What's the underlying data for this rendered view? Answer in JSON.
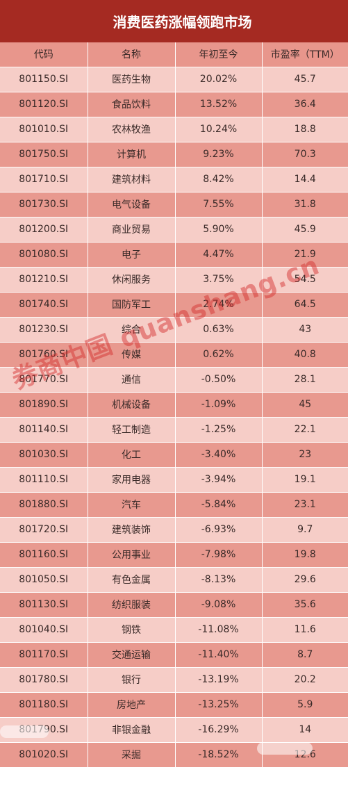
{
  "title": "消费医药涨幅领跑市场",
  "columns": [
    "代码",
    "名称",
    "年初至今",
    "市盈率（TTM）"
  ],
  "rows": [
    {
      "code": "801150.SI",
      "name": "医药生物",
      "ytd": "20.02%",
      "pe": "45.7"
    },
    {
      "code": "801120.SI",
      "name": "食品饮料",
      "ytd": "13.52%",
      "pe": "36.4"
    },
    {
      "code": "801010.SI",
      "name": "农林牧渔",
      "ytd": "10.24%",
      "pe": "18.8"
    },
    {
      "code": "801750.SI",
      "name": "计算机",
      "ytd": "9.23%",
      "pe": "70.3"
    },
    {
      "code": "801710.SI",
      "name": "建筑材料",
      "ytd": "8.42%",
      "pe": "14.4"
    },
    {
      "code": "801730.SI",
      "name": "电气设备",
      "ytd": "7.55%",
      "pe": "31.8"
    },
    {
      "code": "801200.SI",
      "name": "商业贸易",
      "ytd": "5.90%",
      "pe": "45.9"
    },
    {
      "code": "801080.SI",
      "name": "电子",
      "ytd": "4.47%",
      "pe": "21.9"
    },
    {
      "code": "801210.SI",
      "name": "休闲服务",
      "ytd": "3.75%",
      "pe": "54.5"
    },
    {
      "code": "801740.SI",
      "name": "国防军工",
      "ytd": "2.74%",
      "pe": "64.5"
    },
    {
      "code": "801230.SI",
      "name": "综合",
      "ytd": "0.63%",
      "pe": "43"
    },
    {
      "code": "801760.SI",
      "name": "传媒",
      "ytd": "0.62%",
      "pe": "40.8"
    },
    {
      "code": "801770.SI",
      "name": "通信",
      "ytd": "-0.50%",
      "pe": "28.1"
    },
    {
      "code": "801890.SI",
      "name": "机械设备",
      "ytd": "-1.09%",
      "pe": "45"
    },
    {
      "code": "801140.SI",
      "name": "轻工制造",
      "ytd": "-1.25%",
      "pe": "22.1"
    },
    {
      "code": "801030.SI",
      "name": "化工",
      "ytd": "-3.40%",
      "pe": "23"
    },
    {
      "code": "801110.SI",
      "name": "家用电器",
      "ytd": "-3.94%",
      "pe": "19.1"
    },
    {
      "code": "801880.SI",
      "name": "汽车",
      "ytd": "-5.84%",
      "pe": "23.1"
    },
    {
      "code": "801720.SI",
      "name": "建筑装饰",
      "ytd": "-6.93%",
      "pe": "9.7"
    },
    {
      "code": "801160.SI",
      "name": "公用事业",
      "ytd": "-7.98%",
      "pe": "19.8"
    },
    {
      "code": "801050.SI",
      "name": "有色金属",
      "ytd": "-8.13%",
      "pe": "29.6"
    },
    {
      "code": "801130.SI",
      "name": "纺织服装",
      "ytd": "-9.08%",
      "pe": "35.6"
    },
    {
      "code": "801040.SI",
      "name": "钢铁",
      "ytd": "-11.08%",
      "pe": "11.6"
    },
    {
      "code": "801170.SI",
      "name": "交通运输",
      "ytd": "-11.40%",
      "pe": "8.7"
    },
    {
      "code": "801780.SI",
      "name": "银行",
      "ytd": "-13.19%",
      "pe": "20.2"
    },
    {
      "code": "801180.SI",
      "name": "房地产",
      "ytd": "-13.25%",
      "pe": "5.9"
    },
    {
      "code": "801790.SI",
      "name": "非银金融",
      "ytd": "-16.29%",
      "pe": "14"
    },
    {
      "code": "801020.SI",
      "name": "采掘",
      "ytd": "-18.52%",
      "pe": "12.6"
    }
  ],
  "watermark": "券商中国 quanshang.cn",
  "colors": {
    "title_bg": "#a52a22",
    "header_bg": "#e8968c",
    "row_light": "#f6cdc7",
    "row_dark": "#e8998f",
    "watermark": "#d22828"
  }
}
